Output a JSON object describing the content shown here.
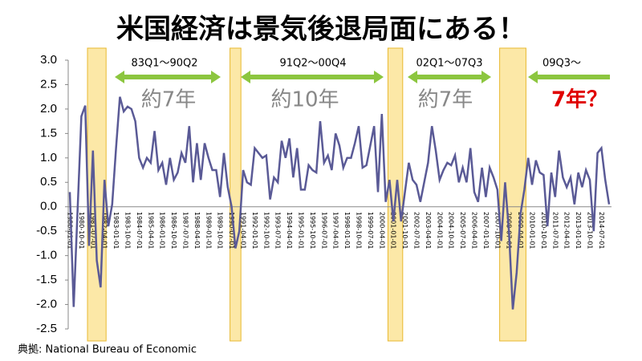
{
  "chart_data": {
    "type": "line",
    "title": "米国経済は景気後退局面にある！",
    "source": "典拠: National Bureau of Economic",
    "categories": [
      "1980-01-01",
      null,
      null,
      "1980-10-01",
      null,
      null,
      "1981-07-01",
      null,
      null,
      "1982-04-01",
      null,
      null,
      "1983-01-01",
      null,
      null,
      "1983-10-01",
      null,
      null,
      "1984-07-01",
      null,
      null,
      "1985-04-01",
      null,
      null,
      "1986-01-01",
      null,
      null,
      "1986-10-01",
      null,
      null,
      "1987-07-01",
      null,
      null,
      "1988-04-01",
      null,
      null,
      "1989-01-01",
      null,
      null,
      "1989-10-01",
      null,
      null,
      "1990-07-01",
      null,
      null,
      "1991-04-01",
      null,
      null,
      "1992-01-01",
      null,
      null,
      "1992-10-01",
      null,
      null,
      "1993-07-01",
      null,
      null,
      "1994-04-01",
      null,
      null,
      "1995-01-01",
      null,
      null,
      "1995-10-01",
      null,
      null,
      "1996-07-01",
      null,
      null,
      "1997-04-01",
      null,
      null,
      "1998-01-01",
      null,
      null,
      "1998-10-01",
      null,
      null,
      "1999-07-01",
      null,
      null,
      "2000-04-01",
      null,
      null,
      "2001-01-01",
      null,
      null,
      "2001-10-01",
      null,
      null,
      "2002-07-01",
      null,
      null,
      "2003-04-01",
      null,
      null,
      "2004-01-01",
      null,
      null,
      "2004-10-01",
      null,
      null,
      "2005-07-01",
      null,
      null,
      "2006-04-01",
      null,
      null,
      "2007-01-01",
      null,
      null,
      "2007-10-01",
      null,
      null,
      "2008-07-01",
      null,
      null,
      "2009-04-01",
      null,
      null,
      "2010-01-01",
      null,
      null,
      "2010-10-01",
      null,
      null,
      "2011-07-01",
      null,
      null,
      "2012-04-01",
      null,
      null,
      "2013-01-01",
      null,
      null,
      "2013-10-01",
      null,
      null,
      "2014-07-01",
      null,
      null
    ],
    "series": [
      {
        "color": "#5a5a96",
        "values": [
          0.3,
          -2.05,
          -0.1,
          1.85,
          2.07,
          -0.8,
          1.15,
          -1.1,
          -1.65,
          0.55,
          -0.4,
          0.05,
          1.2,
          2.25,
          1.95,
          2.05,
          2.0,
          1.75,
          1.0,
          0.8,
          1.0,
          0.9,
          1.55,
          0.75,
          0.9,
          0.45,
          1.0,
          0.55,
          0.7,
          1.1,
          0.9,
          1.65,
          0.5,
          1.3,
          0.55,
          1.3,
          1.0,
          0.75,
          0.75,
          0.2,
          1.1,
          0.4,
          0.0,
          -0.85,
          -0.5,
          0.75,
          0.5,
          0.45,
          1.2,
          1.1,
          1.0,
          1.05,
          0.15,
          0.6,
          0.5,
          1.35,
          1.0,
          1.4,
          0.6,
          1.2,
          0.35,
          0.35,
          0.85,
          0.75,
          0.7,
          1.75,
          0.9,
          1.05,
          0.75,
          1.5,
          1.25,
          0.8,
          1.0,
          1.0,
          1.3,
          1.65,
          0.8,
          0.85,
          1.25,
          1.65,
          0.3,
          1.9,
          0.1,
          0.55,
          -0.3,
          0.55,
          -0.3,
          0.3,
          0.9,
          0.55,
          0.45,
          0.1,
          0.5,
          0.9,
          1.65,
          1.15,
          0.55,
          0.75,
          0.9,
          0.85,
          1.05,
          0.5,
          0.8,
          0.5,
          1.2,
          0.3,
          0.1,
          0.8,
          0.2,
          0.8,
          0.6,
          0.35,
          -0.7,
          0.5,
          -0.5,
          -2.1,
          -1.35,
          -0.15,
          0.35,
          1.0,
          0.45,
          0.95,
          0.7,
          0.65,
          -0.4,
          0.7,
          0.2,
          1.15,
          0.6,
          0.4,
          0.6,
          0.05,
          0.7,
          0.4,
          0.75,
          0.55,
          -0.5,
          1.1,
          1.2,
          0.55,
          0.05
        ]
      }
    ],
    "recessions": [
      [
        5,
        9
      ],
      [
        42,
        44
      ],
      [
        83,
        86
      ],
      [
        112,
        118
      ]
    ],
    "annotations": [
      {
        "period": "83Q1〜90Q2",
        "duration": "約7年"
      },
      {
        "period": "91Q2〜00Q4",
        "duration": "約10年"
      },
      {
        "period": "02Q1〜07Q3",
        "duration": "約7年"
      },
      {
        "period": "09Q3〜",
        "duration": "7年？"
      }
    ],
    "ylim": [
      -2.5,
      3.0
    ],
    "yticks": [
      {
        "value": -2.5,
        "label": "-2.5"
      },
      {
        "value": -2.0,
        "label": "-2.0"
      },
      {
        "value": -1.5,
        "label": "-1.5"
      },
      {
        "value": -1.0,
        "label": "-1.0"
      },
      {
        "value": -0.5,
        "label": "-0.5"
      },
      {
        "value": 0,
        "label": "0.0"
      },
      {
        "value": 0.5,
        "label": "0.5"
      },
      {
        "value": 1.0,
        "label": "1.0"
      },
      {
        "value": 1.5,
        "label": "1.5"
      },
      {
        "value": 2.0,
        "label": "2.0"
      },
      {
        "value": 2.5,
        "label": "2.5"
      },
      {
        "value": 3.0,
        "label": "3.0"
      }
    ]
  }
}
